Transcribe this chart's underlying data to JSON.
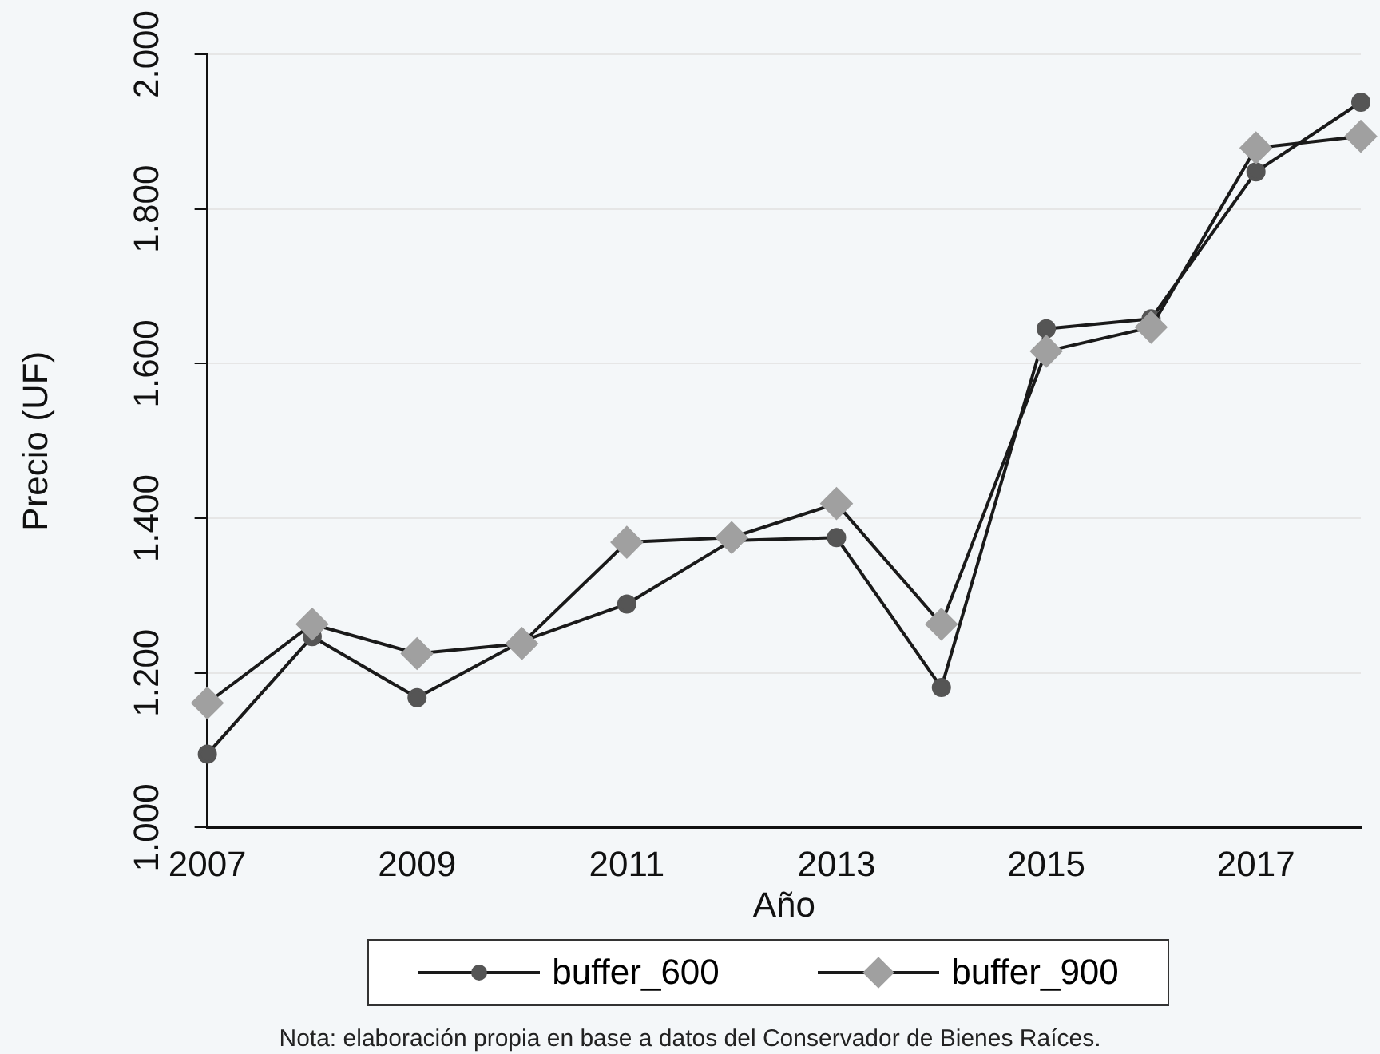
{
  "chart_data": {
    "type": "line",
    "xlabel": "Año",
    "ylabel": "Precio (UF)",
    "x": [
      2007,
      2008,
      2009,
      2010,
      2011,
      2012,
      2013,
      2014,
      2015,
      2016,
      2017,
      2018
    ],
    "series": [
      {
        "name": "buffer_600",
        "color": "#555555",
        "marker": "circle",
        "values": [
          1095,
          1247,
          1168,
          1241,
          1289,
          1371,
          1375,
          1181,
          1645,
          1658,
          1848,
          1938
        ]
      },
      {
        "name": "buffer_900",
        "color": "#a0a0a0",
        "marker": "diamond",
        "values": [
          1161,
          1263,
          1225,
          1238,
          1369,
          1375,
          1419,
          1263,
          1616,
          1647,
          1879,
          1894
        ]
      }
    ],
    "xlim": [
      2007,
      2018
    ],
    "xticks": [
      2007,
      2009,
      2011,
      2013,
      2015,
      2017
    ],
    "ylim": [
      1000,
      2000
    ],
    "yticks": [
      {
        "value": 1000,
        "label": "1.000"
      },
      {
        "value": 1200,
        "label": "1.200"
      },
      {
        "value": 1400,
        "label": "1.400"
      },
      {
        "value": 1600,
        "label": "1.600"
      },
      {
        "value": 1800,
        "label": "1.800"
      },
      {
        "value": 2000,
        "label": "2.000"
      }
    ],
    "grid": "y",
    "legend": "bottom",
    "line_style": "solid",
    "annotations": [
      "Nota: elaboración propia en base a datos del Conservador de Bienes Raíces."
    ]
  }
}
